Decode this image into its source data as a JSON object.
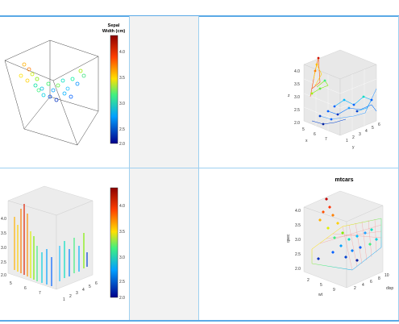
{
  "panels": {
    "top_left": {
      "legend_title_line1": "Sepal",
      "legend_title_line2": "Width (cm)",
      "colorbar_ticks": [
        "4.0",
        "3.5",
        "3.0",
        "2.5",
        "2.0"
      ]
    },
    "top_right": {
      "z_ticks": [
        "4.0",
        "3.5",
        "3.0",
        "2.5",
        "2.0"
      ],
      "x_ticks": [
        "5",
        "6",
        "7"
      ],
      "y_ticks": [
        "1",
        "2",
        "3",
        "4",
        "5",
        "6"
      ],
      "z_label": "z",
      "x_label": "x",
      "y_label": "y"
    },
    "bottom_left": {
      "z_ticks": [
        "4.0",
        "3.5",
        "3.0",
        "2.5",
        "2.0"
      ],
      "x_ticks": [
        "5",
        "6",
        "7"
      ],
      "y_ticks": [
        "1",
        "2",
        "3",
        "4",
        "5",
        "6"
      ],
      "colorbar_ticks": [
        "4.0",
        "3.5",
        "3.0",
        "2.5",
        "2.0"
      ]
    },
    "bottom_right": {
      "title": "mtcars",
      "z_ticks": [
        "4.0",
        "3.5",
        "3.0",
        "2.5",
        "2.0"
      ],
      "x_ticks": [
        "2",
        "5",
        "9"
      ],
      "y_ticks": [
        "2",
        "4",
        "6",
        "8",
        "10"
      ],
      "z_label": "qsec",
      "x_label": "wt",
      "y_label": "disp"
    }
  },
  "colors": {
    "accent_line": "#5aa9e6",
    "divider": "#9fd0f0",
    "empty_panel": "#f2f2f2"
  }
}
